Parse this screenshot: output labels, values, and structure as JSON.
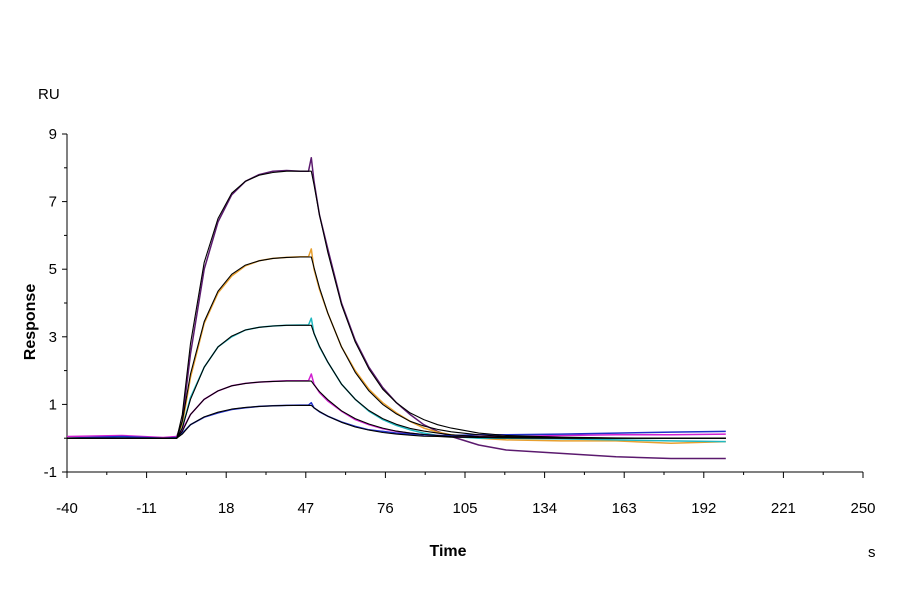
{
  "chart_data": {
    "type": "line",
    "title": "",
    "xlabel": "Time",
    "ylabel": "Response",
    "x_unit": "s",
    "y_unit": "RU",
    "xlim": [
      -40,
      250
    ],
    "ylim": [
      -1,
      9
    ],
    "x_ticks": [
      -40,
      -11,
      18,
      47,
      76,
      105,
      134,
      163,
      192,
      221,
      250
    ],
    "y_ticks": [
      -1,
      1,
      3,
      5,
      7,
      9
    ],
    "grid": false,
    "legend": "none",
    "series": [
      {
        "color": "#5b1a6e",
        "x": [
          -40,
          -20,
          -5,
          0,
          2,
          5,
          10,
          15,
          20,
          25,
          30,
          35,
          40,
          45,
          48,
          49,
          50,
          52,
          55,
          60,
          65,
          70,
          75,
          80,
          85,
          90,
          95,
          100,
          110,
          120,
          140,
          160,
          180,
          200
        ],
        "y": [
          0.0,
          0.02,
          0.0,
          0.05,
          0.5,
          2.5,
          5.0,
          6.4,
          7.2,
          7.6,
          7.8,
          7.9,
          7.92,
          7.9,
          7.9,
          8.3,
          7.6,
          6.6,
          5.6,
          4.0,
          2.9,
          2.1,
          1.5,
          1.05,
          0.7,
          0.4,
          0.2,
          0.05,
          -0.2,
          -0.35,
          -0.45,
          -0.55,
          -0.6,
          -0.6
        ]
      },
      {
        "color": "#e8a030",
        "x": [
          -40,
          -20,
          -5,
          0,
          2,
          5,
          10,
          15,
          20,
          25,
          30,
          35,
          40,
          45,
          48,
          49,
          50,
          52,
          55,
          60,
          65,
          70,
          75,
          80,
          85,
          90,
          95,
          100,
          110,
          120,
          140,
          160,
          180,
          200
        ],
        "y": [
          0.0,
          0.03,
          0.0,
          0.02,
          0.4,
          1.8,
          3.4,
          4.3,
          4.8,
          5.1,
          5.25,
          5.32,
          5.35,
          5.37,
          5.37,
          5.6,
          5.0,
          4.4,
          3.7,
          2.7,
          2.0,
          1.45,
          1.05,
          0.75,
          0.5,
          0.3,
          0.18,
          0.1,
          0.0,
          -0.05,
          -0.08,
          -0.08,
          -0.15,
          -0.1
        ]
      },
      {
        "color": "#20b8c0",
        "x": [
          -40,
          -20,
          -5,
          0,
          2,
          5,
          10,
          15,
          20,
          25,
          30,
          35,
          40,
          45,
          48,
          49,
          50,
          52,
          55,
          60,
          65,
          70,
          75,
          80,
          85,
          90,
          95,
          100,
          110,
          120,
          140,
          160,
          180,
          200
        ],
        "y": [
          0.0,
          0.05,
          0.0,
          0.02,
          0.3,
          1.2,
          2.1,
          2.7,
          3.0,
          3.2,
          3.28,
          3.32,
          3.34,
          3.35,
          3.35,
          3.55,
          3.1,
          2.7,
          2.25,
          1.6,
          1.15,
          0.8,
          0.55,
          0.38,
          0.25,
          0.15,
          0.08,
          0.05,
          0.0,
          0.0,
          -0.02,
          -0.05,
          -0.08,
          -0.1
        ]
      },
      {
        "color": "#d020d0",
        "x": [
          -40,
          -20,
          -5,
          0,
          2,
          5,
          10,
          15,
          20,
          25,
          30,
          35,
          40,
          45,
          48,
          49,
          50,
          52,
          55,
          60,
          65,
          70,
          75,
          80,
          85,
          90,
          95,
          100,
          110,
          120,
          140,
          160,
          180,
          200
        ],
        "y": [
          0.05,
          0.08,
          0.02,
          0.05,
          0.25,
          0.7,
          1.15,
          1.4,
          1.55,
          1.62,
          1.66,
          1.68,
          1.7,
          1.7,
          1.7,
          1.9,
          1.6,
          1.35,
          1.1,
          0.8,
          0.55,
          0.4,
          0.28,
          0.2,
          0.15,
          0.1,
          0.08,
          0.06,
          0.05,
          0.05,
          0.08,
          0.1,
          0.1,
          0.12
        ]
      },
      {
        "color": "#2030c8",
        "x": [
          -40,
          -20,
          -5,
          0,
          2,
          5,
          10,
          15,
          20,
          25,
          30,
          35,
          40,
          45,
          48,
          49,
          50,
          52,
          55,
          60,
          65,
          70,
          75,
          80,
          85,
          90,
          95,
          100,
          110,
          120,
          140,
          160,
          180,
          200
        ],
        "y": [
          0.0,
          0.05,
          0.0,
          0.02,
          0.15,
          0.4,
          0.62,
          0.75,
          0.85,
          0.9,
          0.94,
          0.96,
          0.97,
          0.98,
          0.98,
          1.05,
          0.9,
          0.78,
          0.65,
          0.48,
          0.35,
          0.25,
          0.2,
          0.15,
          0.12,
          0.1,
          0.08,
          0.08,
          0.1,
          0.1,
          0.12,
          0.15,
          0.18,
          0.2
        ]
      },
      {
        "color": "#000000",
        "x": [
          -40,
          -20,
          -5,
          0,
          2,
          5,
          10,
          15,
          20,
          25,
          30,
          35,
          40,
          45,
          48,
          49,
          50,
          52,
          55,
          60,
          65,
          70,
          75,
          80,
          85,
          90,
          95,
          100,
          110,
          120,
          140,
          160,
          180,
          200
        ],
        "y": [
          0.0,
          0.0,
          0.0,
          0.0,
          0.7,
          2.8,
          5.2,
          6.5,
          7.25,
          7.6,
          7.78,
          7.86,
          7.9,
          7.9,
          7.9,
          7.9,
          7.5,
          6.6,
          5.5,
          3.95,
          2.85,
          2.05,
          1.45,
          1.05,
          0.75,
          0.55,
          0.4,
          0.3,
          0.15,
          0.08,
          0.03,
          0.01,
          0.0,
          0.0
        ]
      },
      {
        "color": "#000000",
        "x": [
          -40,
          -20,
          -5,
          0,
          2,
          5,
          10,
          15,
          20,
          25,
          30,
          35,
          40,
          45,
          48,
          49,
          50,
          52,
          55,
          60,
          65,
          70,
          75,
          80,
          85,
          90,
          95,
          100,
          110,
          120,
          140,
          160,
          180,
          200
        ],
        "y": [
          0.0,
          0.0,
          0.0,
          0.0,
          0.5,
          1.9,
          3.45,
          4.35,
          4.85,
          5.12,
          5.25,
          5.32,
          5.35,
          5.36,
          5.36,
          5.36,
          5.05,
          4.45,
          3.7,
          2.7,
          1.95,
          1.4,
          1.0,
          0.72,
          0.5,
          0.36,
          0.26,
          0.19,
          0.1,
          0.05,
          0.02,
          0.0,
          0.0,
          0.0
        ]
      },
      {
        "color": "#000000",
        "x": [
          -40,
          -20,
          -5,
          0,
          2,
          5,
          10,
          15,
          20,
          25,
          30,
          35,
          40,
          45,
          48,
          49,
          50,
          52,
          55,
          60,
          65,
          70,
          75,
          80,
          85,
          90,
          95,
          100,
          110,
          120,
          140,
          160,
          180,
          200
        ],
        "y": [
          0.0,
          0.0,
          0.0,
          0.0,
          0.3,
          1.15,
          2.1,
          2.7,
          3.02,
          3.2,
          3.28,
          3.32,
          3.34,
          3.34,
          3.34,
          3.34,
          3.1,
          2.72,
          2.25,
          1.6,
          1.15,
          0.82,
          0.58,
          0.41,
          0.29,
          0.21,
          0.15,
          0.1,
          0.05,
          0.03,
          0.01,
          0.0,
          0.0,
          0.0
        ]
      },
      {
        "color": "#000000",
        "x": [
          -40,
          -20,
          -5,
          0,
          2,
          5,
          10,
          15,
          20,
          25,
          30,
          35,
          40,
          45,
          48,
          49,
          50,
          52,
          55,
          60,
          65,
          70,
          75,
          80,
          85,
          90,
          95,
          100,
          110,
          120,
          140,
          160,
          180,
          200
        ],
        "y": [
          0.0,
          0.0,
          0.0,
          0.0,
          0.2,
          0.7,
          1.15,
          1.4,
          1.55,
          1.62,
          1.66,
          1.68,
          1.69,
          1.69,
          1.69,
          1.69,
          1.58,
          1.38,
          1.14,
          0.81,
          0.58,
          0.42,
          0.3,
          0.21,
          0.15,
          0.11,
          0.08,
          0.05,
          0.03,
          0.01,
          0.0,
          0.0,
          0.0,
          0.0
        ]
      },
      {
        "color": "#000000",
        "x": [
          -40,
          -20,
          -5,
          0,
          2,
          5,
          10,
          15,
          20,
          25,
          30,
          35,
          40,
          45,
          48,
          49,
          50,
          52,
          55,
          60,
          65,
          70,
          75,
          80,
          85,
          90,
          95,
          100,
          110,
          120,
          140,
          160,
          180,
          200
        ],
        "y": [
          0.0,
          0.0,
          0.0,
          0.0,
          0.12,
          0.4,
          0.63,
          0.77,
          0.86,
          0.91,
          0.94,
          0.96,
          0.97,
          0.97,
          0.97,
          0.97,
          0.9,
          0.79,
          0.65,
          0.47,
          0.33,
          0.24,
          0.17,
          0.12,
          0.09,
          0.06,
          0.05,
          0.03,
          0.02,
          0.01,
          0.0,
          0.0,
          0.0,
          0.0
        ]
      }
    ]
  }
}
